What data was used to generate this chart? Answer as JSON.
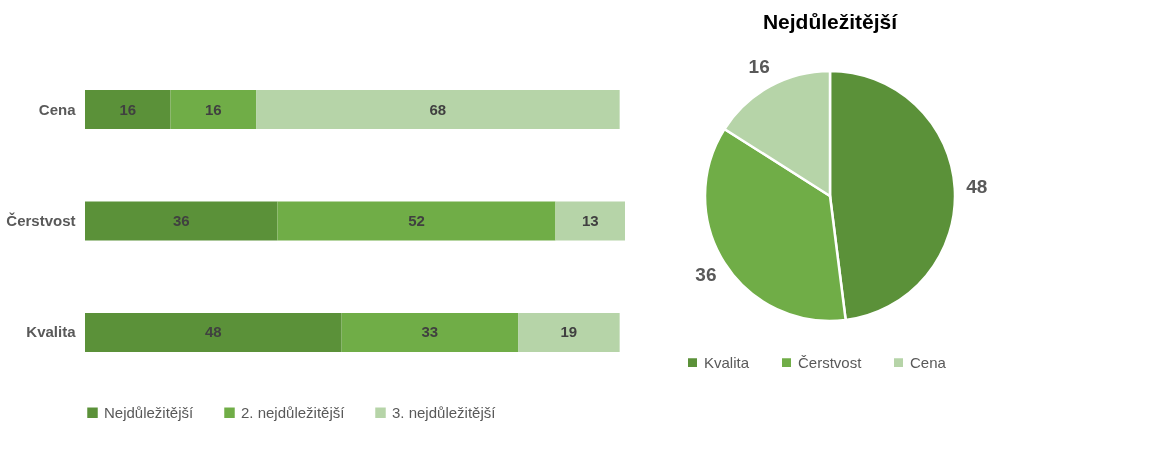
{
  "chart_data": [
    {
      "type": "bar",
      "orientation": "horizontal",
      "stacked": true,
      "categories": [
        "Cena",
        "Čerstvost",
        "Kvalita"
      ],
      "series": [
        {
          "name": "Nejdůležitější",
          "color": "#5b9139",
          "values": [
            16,
            36,
            48
          ]
        },
        {
          "name": "2. nejdůležitější",
          "color": "#70ad47",
          "values": [
            16,
            52,
            33
          ]
        },
        {
          "name": "3. nejdůležitější",
          "color": "#b6d4a8",
          "values": [
            68,
            13,
            19
          ]
        }
      ],
      "data_labels": true,
      "legend": "bottom"
    },
    {
      "type": "pie",
      "title": "Nejdůležitější",
      "categories": [
        "Kvalita",
        "Čerstvost",
        "Cena"
      ],
      "values": [
        48,
        36,
        16
      ],
      "colors": [
        "#5b9139",
        "#70ad47",
        "#b6d4a8"
      ],
      "data_labels": true,
      "legend": "bottom"
    }
  ]
}
